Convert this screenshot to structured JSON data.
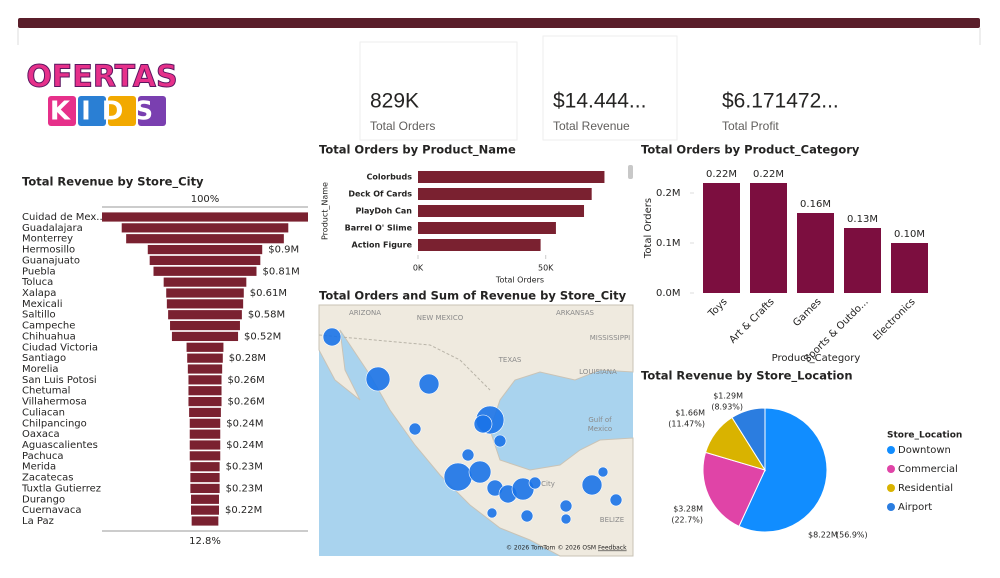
{
  "logo": {
    "top": "OFERTAS",
    "bottom": "KIDS"
  },
  "cards": [
    {
      "value": "829K",
      "label": "Total Orders"
    },
    {
      "value": "$14.444...",
      "label": "Total Revenue"
    },
    {
      "value": "$6.171472...",
      "label": "Total Profit"
    }
  ],
  "map": {
    "title": "Total Orders and Sum of Revenue by Store_City",
    "labels": [
      "ARIZONA",
      "NEW MEXICO",
      "TEXAS",
      "ARKANSAS",
      "MISSISSIPPI",
      "LOUISIANA",
      "Gulf of",
      "Mexico",
      "City",
      "BELIZE"
    ],
    "attribution": "© 2026 TomTom © 2026 OSM",
    "feedback": "Feedback"
  },
  "chart_data": [
    {
      "type": "funnel",
      "title": "Total Revenue by Store_City",
      "categories": [
        "Cuidad de Mex...",
        "Guadalajara",
        "Monterrey",
        "Hermosillo",
        "Guanajuato",
        "Puebla",
        "Toluca",
        "Xalapa",
        "Mexicali",
        "Saltillo",
        "Campeche",
        "Chihuahua",
        "Ciudad Victoria",
        "Santiago",
        "Morelia",
        "San Luis Potosi",
        "Chetumal",
        "Villahermosa",
        "Culiacan",
        "Chilpancingo",
        "Oaxaca",
        "Aguascalientes",
        "Pachuca",
        "Merida",
        "Zacatecas",
        "Tuxtla Gutierrez",
        "Durango",
        "Cuernavaca",
        "La Paz"
      ],
      "values": [
        1.62,
        1.31,
        1.24,
        0.9,
        0.87,
        0.81,
        0.65,
        0.61,
        0.6,
        0.58,
        0.55,
        0.52,
        0.29,
        0.28,
        0.27,
        0.26,
        0.26,
        0.26,
        0.25,
        0.24,
        0.24,
        0.24,
        0.24,
        0.23,
        0.23,
        0.23,
        0.22,
        0.22,
        0.21
      ],
      "value_labels": [
        null,
        null,
        null,
        "$0.9M",
        null,
        "$0.81M",
        null,
        "$0.61M",
        null,
        "$0.58M",
        null,
        "$0.52M",
        null,
        "$0.28M",
        null,
        "$0.26M",
        null,
        "$0.26M",
        null,
        "$0.24M",
        null,
        "$0.24M",
        null,
        "$0.23M",
        null,
        "$0.23M",
        null,
        "$0.22M",
        null
      ],
      "top_label": "100%",
      "bottom_label": "12.8%",
      "color": "#7a2130"
    },
    {
      "type": "hbar",
      "title": "Total Orders by Product_Name",
      "xlabel": "Total Orders",
      "ylabel": "Product_Name",
      "categories": [
        "Colorbuds",
        "Deck Of Cards",
        "PlayDoh Can",
        "Barrel O' Slime",
        "Action Figure"
      ],
      "values": [
        73000,
        68000,
        65000,
        54000,
        48000
      ],
      "xlim": [
        0,
        83000
      ],
      "xticks": [
        {
          "value": 0,
          "label": "0K"
        },
        {
          "value": 50000,
          "label": "50K"
        }
      ],
      "color": "#7a2130"
    },
    {
      "type": "bar",
      "title": "Total Orders by Product_Category",
      "xlabel": "Product_Category",
      "ylabel": "Total Orders",
      "categories": [
        "Toys",
        "Art & Crafts",
        "Games",
        "Sports & Outdo...",
        "Electronics"
      ],
      "values": [
        0.22,
        0.22,
        0.16,
        0.13,
        0.1
      ],
      "value_labels": [
        "0.22M",
        "0.22M",
        "0.16M",
        "0.13M",
        "0.10M"
      ],
      "ylim": [
        0,
        0.25
      ],
      "yticks": [
        {
          "value": 0,
          "label": "0.0M"
        },
        {
          "value": 0.1,
          "label": "0.1M"
        },
        {
          "value": 0.2,
          "label": "0.2M"
        }
      ],
      "color": "#7c0e3f"
    },
    {
      "type": "pie",
      "title": "Total Revenue by Store_Location",
      "legend_title": "Store_Location",
      "categories": [
        "Downtown",
        "Commercial",
        "Residential",
        "Airport"
      ],
      "values": [
        8.22,
        3.28,
        1.66,
        1.29
      ],
      "value_labels": [
        "$8.22M",
        "$3.28M",
        "$1.66M",
        "$1.29M"
      ],
      "percent_labels": [
        "(56.9%)",
        "(22.7%)",
        "(11.47%)",
        "(8.93%)"
      ],
      "colors": [
        "#118dff",
        "#e044a7",
        "#d9b300",
        "#2b7de0"
      ]
    }
  ]
}
